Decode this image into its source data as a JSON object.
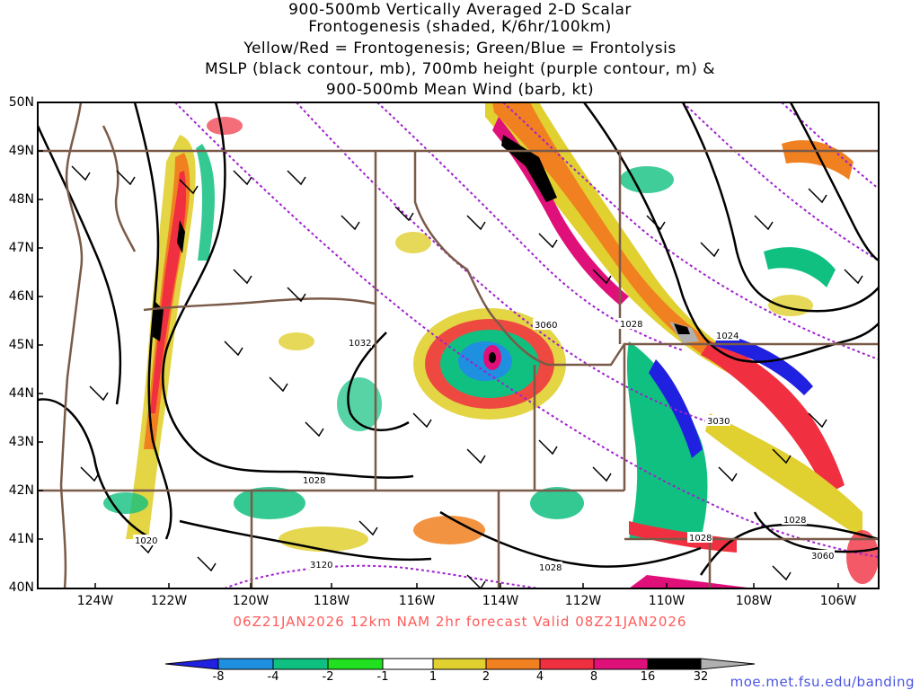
{
  "title": {
    "line1": "900-500mb Vertically Averaged 2-D Scalar",
    "line2": "Frontogenesis (shaded, K/6hr/100km)",
    "line3": "Yellow/Red = Frontogenesis;  Green/Blue = Frontolysis",
    "line4": "MSLP (black contour, mb), 700mb height (purple contour, m) &",
    "line5": "900-500mb Mean Wind (barb, kt)"
  },
  "latitude_labels": [
    "50N",
    "49N",
    "48N",
    "47N",
    "46N",
    "45N",
    "44N",
    "43N",
    "42N",
    "41N",
    "40N"
  ],
  "longitude_labels": [
    "124W",
    "122W",
    "120W",
    "118W",
    "116W",
    "114W",
    "112W",
    "110W",
    "108W",
    "106W"
  ],
  "contour_labels": {
    "mslp_a": "1032",
    "mslp_b": "1028",
    "mslp_c": "1024",
    "mslp_d": "1028",
    "mslp_e": "1020",
    "mslp_f": "1028",
    "mslp_g": "1028",
    "mslp_h": "1028",
    "height_a": "3060",
    "height_b": "3030",
    "height_c": "3120",
    "height_d": "3060"
  },
  "valid_line": "06Z21JAN2026 12km NAM 2hr forecast Valid 08Z21JAN2026",
  "colorbar": {
    "labels": [
      "-8",
      "-4",
      "-2",
      "-1",
      "1",
      "2",
      "4",
      "8",
      "16",
      "32"
    ],
    "colors": [
      "#2020e0",
      "#1f8fe0",
      "#10c080",
      "#20e020",
      "#ffffff",
      "#e0d030",
      "#f08020",
      "#f03040",
      "#e0107a",
      "#000000",
      "#b0b0b0"
    ]
  },
  "colors": {
    "state_border": "#7a5a48",
    "mslp_contour": "#000000",
    "height_contour": "#a020d0",
    "valid_text": "#ff5a5a",
    "url_text": "#4a55e0"
  },
  "url": "moe.met.fsu.edu/banding"
}
